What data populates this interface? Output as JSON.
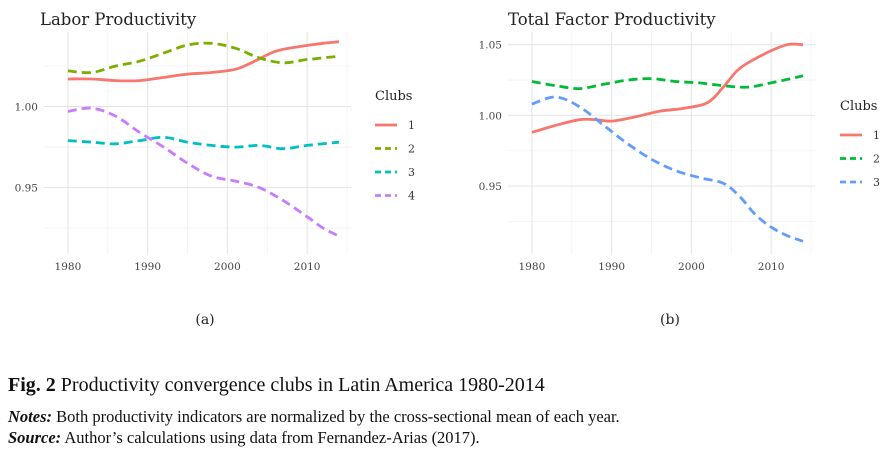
{
  "figure": {
    "label": "Fig. 2",
    "title": "Productivity convergence clubs in Latin America 1980-2014",
    "notes_label": "Notes:",
    "notes_text": "Both productivity indicators are normalized by the cross-sectional mean of each year.",
    "source_label": "Source:",
    "source_text": "Author’s calculations using data from Fernandez-Arias (2017)."
  },
  "chart_data": [
    {
      "type": "line",
      "panel": "(a)",
      "title": "Labor Productivity",
      "xlabel": "",
      "ylabel": "",
      "xlim": [
        1977,
        2015.5
      ],
      "ylim": [
        0.909,
        1.046
      ],
      "xticks": [
        1980,
        1990,
        2000,
        2010
      ],
      "yticks": [
        0.95,
        1.0
      ],
      "ytick_labels": [
        "0.95",
        "1.00"
      ],
      "grid": true,
      "legend": {
        "title": "Clubs",
        "position": "right"
      },
      "series": [
        {
          "name": "1",
          "color": "#F8766D",
          "dash": "solid",
          "points": [
            [
              1980,
              1.017
            ],
            [
              1983,
              1.017
            ],
            [
              1986,
              1.016
            ],
            [
              1989,
              1.016
            ],
            [
              1992,
              1.018
            ],
            [
              1995,
              1.02
            ],
            [
              1998,
              1.021
            ],
            [
              2001,
              1.023
            ],
            [
              2003,
              1.027
            ],
            [
              2006,
              1.034
            ],
            [
              2009,
              1.037
            ],
            [
              2012,
              1.039
            ],
            [
              2014,
              1.04
            ]
          ]
        },
        {
          "name": "2",
          "color": "#7CAE00",
          "dash": "dashed",
          "points": [
            [
              1980,
              1.022
            ],
            [
              1983,
              1.021
            ],
            [
              1986,
              1.025
            ],
            [
              1989,
              1.028
            ],
            [
              1992,
              1.033
            ],
            [
              1995,
              1.038
            ],
            [
              1998,
              1.039
            ],
            [
              2001,
              1.036
            ],
            [
              2004,
              1.03
            ],
            [
              2007,
              1.027
            ],
            [
              2010,
              1.029
            ],
            [
              2014,
              1.031
            ]
          ]
        },
        {
          "name": "3",
          "color": "#00BFC4",
          "dash": "dashed",
          "points": [
            [
              1980,
              0.979
            ],
            [
              1983,
              0.978
            ],
            [
              1986,
              0.977
            ],
            [
              1989,
              0.979
            ],
            [
              1992,
              0.981
            ],
            [
              1995,
              0.978
            ],
            [
              1998,
              0.976
            ],
            [
              2001,
              0.975
            ],
            [
              2004,
              0.976
            ],
            [
              2007,
              0.974
            ],
            [
              2010,
              0.976
            ],
            [
              2014,
              0.978
            ]
          ]
        },
        {
          "name": "4",
          "color": "#C77CFF",
          "dash": "dashed",
          "points": [
            [
              1980,
              0.997
            ],
            [
              1983,
              0.999
            ],
            [
              1986,
              0.994
            ],
            [
              1989,
              0.984
            ],
            [
              1992,
              0.975
            ],
            [
              1995,
              0.965
            ],
            [
              1998,
              0.957
            ],
            [
              2001,
              0.954
            ],
            [
              2004,
              0.95
            ],
            [
              2007,
              0.942
            ],
            [
              2010,
              0.932
            ],
            [
              2012,
              0.925
            ],
            [
              2014,
              0.92
            ]
          ]
        }
      ]
    },
    {
      "type": "line",
      "panel": "(b)",
      "title": "Total Factor Productivity",
      "xlabel": "",
      "ylabel": "",
      "xlim": [
        1977,
        2015.5
      ],
      "ylim": [
        0.902,
        1.059
      ],
      "xticks": [
        1980,
        1990,
        2000,
        2010
      ],
      "yticks": [
        0.95,
        1.0,
        1.05
      ],
      "ytick_labels": [
        "0.95",
        "1.00",
        "1.05"
      ],
      "grid": true,
      "legend": {
        "title": "Clubs",
        "position": "right"
      },
      "series": [
        {
          "name": "1",
          "color": "#F8766D",
          "dash": "solid",
          "points": [
            [
              1980,
              0.988
            ],
            [
              1983,
              0.993
            ],
            [
              1986,
              0.997
            ],
            [
              1988,
              0.997
            ],
            [
              1990,
              0.996
            ],
            [
              1993,
              0.999
            ],
            [
              1996,
              1.003
            ],
            [
              1999,
              1.005
            ],
            [
              2002,
              1.009
            ],
            [
              2004,
              1.02
            ],
            [
              2006,
              1.033
            ],
            [
              2009,
              1.043
            ],
            [
              2012,
              1.05
            ],
            [
              2014,
              1.05
            ]
          ]
        },
        {
          "name": "2",
          "color": "#00BA38",
          "dash": "dashed",
          "points": [
            [
              1980,
              1.024
            ],
            [
              1983,
              1.021
            ],
            [
              1986,
              1.019
            ],
            [
              1989,
              1.022
            ],
            [
              1992,
              1.025
            ],
            [
              1995,
              1.026
            ],
            [
              1998,
              1.024
            ],
            [
              2001,
              1.023
            ],
            [
              2004,
              1.021
            ],
            [
              2007,
              1.02
            ],
            [
              2010,
              1.023
            ],
            [
              2014,
              1.028
            ]
          ]
        },
        {
          "name": "3",
          "color": "#619CFF",
          "dash": "dashed",
          "points": [
            [
              1980,
              1.008
            ],
            [
              1983,
              1.013
            ],
            [
              1986,
              1.006
            ],
            [
              1989,
              0.993
            ],
            [
              1992,
              0.98
            ],
            [
              1995,
              0.969
            ],
            [
              1998,
              0.961
            ],
            [
              2001,
              0.956
            ],
            [
              2004,
              0.952
            ],
            [
              2006,
              0.943
            ],
            [
              2008,
              0.93
            ],
            [
              2010,
              0.921
            ],
            [
              2012,
              0.915
            ],
            [
              2014,
              0.911
            ]
          ]
        }
      ]
    }
  ]
}
